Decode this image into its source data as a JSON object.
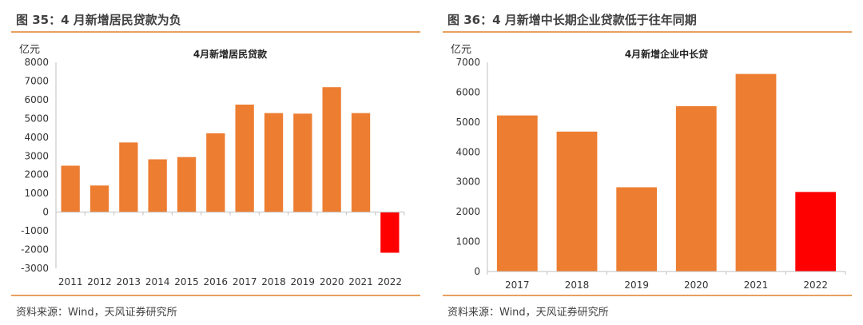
{
  "panels": [
    {
      "fig_title": "图 35：4 月新增居民贷款为负",
      "source": "资料来源：Wind，天风证券研究所"
    },
    {
      "fig_title": "图 36：4 月新增中长期企业贷款低于往年同期",
      "source": "资料来源：Wind，天风证券研究所"
    }
  ],
  "colors": {
    "bar": "#ED7D31",
    "highlight": "#FF0000",
    "rule": "#E8A15F"
  },
  "chart_data": [
    {
      "type": "bar",
      "title": "4月新增居民贷款",
      "ylabel": "亿元",
      "xlabel": "",
      "categories": [
        "2011",
        "2012",
        "2013",
        "2014",
        "2015",
        "2016",
        "2017",
        "2018",
        "2019",
        "2020",
        "2021",
        "2022"
      ],
      "values": [
        2480,
        1420,
        3720,
        2820,
        2940,
        4210,
        5740,
        5290,
        5260,
        6670,
        5290,
        -2170
      ],
      "ylim": [
        -3000,
        8000
      ],
      "yticks": [
        -3000,
        -2000,
        -1000,
        0,
        1000,
        2000,
        3000,
        4000,
        5000,
        6000,
        7000,
        8000
      ],
      "highlight_index": 11,
      "grid": false,
      "legend": "none"
    },
    {
      "type": "bar",
      "title": "4月新增企业中长贷",
      "ylabel": "亿元",
      "xlabel": "",
      "categories": [
        "2017",
        "2018",
        "2019",
        "2020",
        "2021",
        "2022"
      ],
      "values": [
        5220,
        4680,
        2820,
        5530,
        6610,
        2660
      ],
      "ylim": [
        0,
        7000
      ],
      "yticks": [
        0,
        1000,
        2000,
        3000,
        4000,
        5000,
        6000,
        7000
      ],
      "highlight_index": 5,
      "grid": false,
      "legend": "none"
    }
  ]
}
